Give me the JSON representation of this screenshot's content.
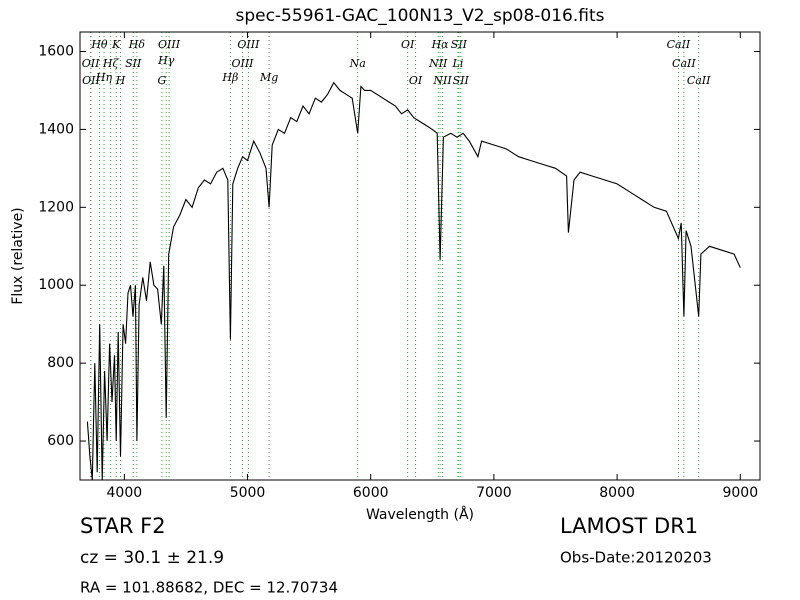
{
  "chart_data": {
    "type": "line",
    "title": "spec-55961-GAC_100N13_V2_sp08-016.fits",
    "xlabel": "Wavelength (Å)",
    "ylabel": "Flux (relative)",
    "color": "#000000",
    "line_marker_color": "#2ca02c",
    "xlim": [
      3640,
      9160
    ],
    "ylim": [
      500,
      1650
    ],
    "xticks": [
      4000,
      5000,
      6000,
      7000,
      8000,
      9000
    ],
    "yticks": [
      600,
      800,
      1000,
      1200,
      1400,
      1600
    ],
    "x": [
      3700,
      3720,
      3740,
      3760,
      3780,
      3800,
      3820,
      3840,
      3860,
      3880,
      3900,
      3920,
      3934,
      3950,
      3969,
      3990,
      4010,
      4030,
      4050,
      4070,
      4090,
      4102,
      4120,
      4150,
      4180,
      4210,
      4240,
      4270,
      4300,
      4320,
      4340,
      4360,
      4400,
      4450,
      4500,
      4550,
      4600,
      4650,
      4700,
      4750,
      4800,
      4840,
      4861,
      4880,
      4920,
      4960,
      5000,
      5050,
      5100,
      5150,
      5175,
      5200,
      5250,
      5300,
      5350,
      5400,
      5450,
      5500,
      5550,
      5600,
      5650,
      5700,
      5750,
      5800,
      5850,
      5894,
      5920,
      5950,
      6000,
      6050,
      6100,
      6150,
      6200,
      6250,
      6300,
      6350,
      6400,
      6450,
      6500,
      6540,
      6563,
      6590,
      6650,
      6700,
      6750,
      6800,
      6870,
      6900,
      7000,
      7100,
      7200,
      7300,
      7400,
      7500,
      7590,
      7605,
      7650,
      7700,
      7800,
      7900,
      8000,
      8100,
      8200,
      8300,
      8400,
      8498,
      8520,
      8542,
      8560,
      8600,
      8662,
      8680,
      8750,
      8850,
      8950,
      9000
    ],
    "values": [
      650,
      560,
      500,
      800,
      520,
      900,
      500,
      780,
      600,
      850,
      700,
      820,
      600,
      880,
      560,
      900,
      850,
      980,
      1000,
      920,
      1000,
      600,
      950,
      1020,
      960,
      1060,
      1000,
      990,
      900,
      1050,
      660,
      1080,
      1150,
      1180,
      1220,
      1200,
      1250,
      1270,
      1260,
      1290,
      1300,
      1270,
      860,
      1260,
      1300,
      1330,
      1320,
      1370,
      1340,
      1300,
      1200,
      1360,
      1400,
      1390,
      1430,
      1420,
      1460,
      1440,
      1480,
      1470,
      1490,
      1520,
      1500,
      1490,
      1480,
      1390,
      1510,
      1500,
      1500,
      1490,
      1480,
      1470,
      1460,
      1440,
      1450,
      1430,
      1420,
      1410,
      1400,
      1390,
      1065,
      1380,
      1390,
      1380,
      1390,
      1370,
      1330,
      1370,
      1360,
      1350,
      1330,
      1320,
      1310,
      1300,
      1280,
      1135,
      1270,
      1290,
      1280,
      1270,
      1260,
      1240,
      1220,
      1200,
      1190,
      1120,
      1160,
      920,
      1140,
      1100,
      920,
      1080,
      1100,
      1090,
      1080,
      1045
    ],
    "lines": [
      {
        "label": "OII",
        "wavelength": 3726
      },
      {
        "label": "OII",
        "wavelength": 3729
      },
      {
        "label": "Hθ",
        "wavelength": 3798
      },
      {
        "label": "Hη",
        "wavelength": 3835
      },
      {
        "label": "Hζ",
        "wavelength": 3889
      },
      {
        "label": "K",
        "wavelength": 3934
      },
      {
        "label": "H",
        "wavelength": 3969
      },
      {
        "label": "SII",
        "wavelength": 4072
      },
      {
        "label": "Hδ",
        "wavelength": 4102
      },
      {
        "label": "G",
        "wavelength": 4305
      },
      {
        "label": "Hγ",
        "wavelength": 4340
      },
      {
        "label": "OIII",
        "wavelength": 4363
      },
      {
        "label": "Hβ",
        "wavelength": 4861
      },
      {
        "label": "OIII",
        "wavelength": 4959
      },
      {
        "label": "OIII",
        "wavelength": 5007
      },
      {
        "label": "Mg",
        "wavelength": 5175
      },
      {
        "label": "Na",
        "wavelength": 5894
      },
      {
        "label": "OI",
        "wavelength": 6300
      },
      {
        "label": "OI",
        "wavelength": 6364
      },
      {
        "label": "NII",
        "wavelength": 6548
      },
      {
        "label": "Hα",
        "wavelength": 6563
      },
      {
        "label": "NII",
        "wavelength": 6583
      },
      {
        "label": "Li",
        "wavelength": 6708
      },
      {
        "label": "SII",
        "wavelength": 6716
      },
      {
        "label": "SII",
        "wavelength": 6731
      },
      {
        "label": "CaII",
        "wavelength": 8498
      },
      {
        "label": "CaII",
        "wavelength": 8542
      },
      {
        "label": "CaII",
        "wavelength": 8662
      }
    ]
  },
  "info": {
    "object": "STAR   F2",
    "redshift": "cz = 30.1 ± 21.9",
    "coords": "RA = 101.88682, DEC = 12.70734",
    "survey": "LAMOST DR1",
    "obs_date": "Obs-Date:20120203"
  }
}
